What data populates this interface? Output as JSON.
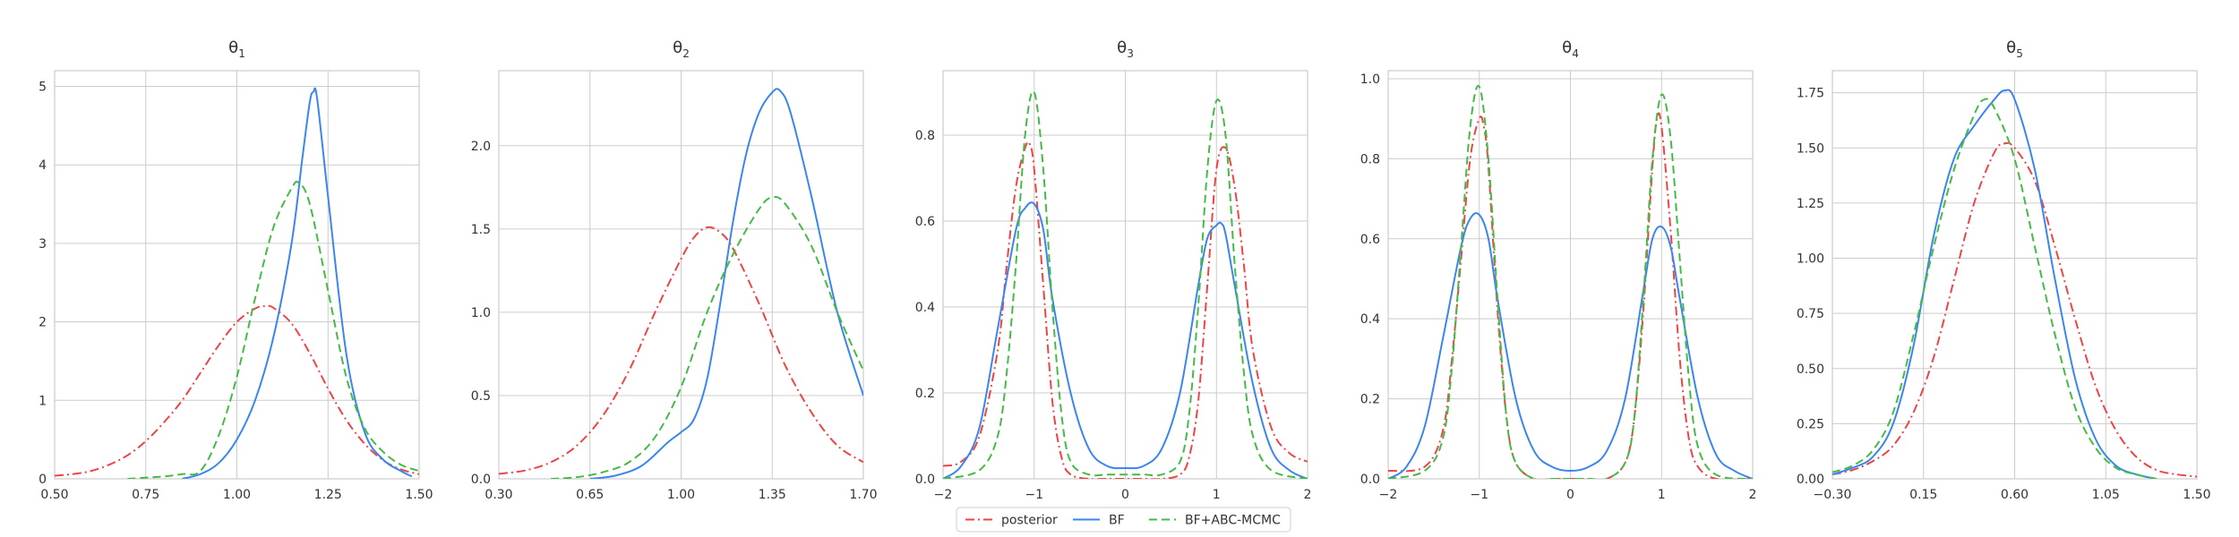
{
  "chart_data": {
    "type": "line",
    "style": {
      "grid": true,
      "legend_placement": "bottom-center",
      "background": "#ffffff",
      "grid_color": "#cccccc",
      "spine_color": "#cccccc"
    },
    "legend": [
      {
        "name": "posterior",
        "color": "#ee4444",
        "dash": "dashdot"
      },
      {
        "name": "BF",
        "color": "#3a86ee",
        "dash": "solid"
      },
      {
        "name": "BF+ABC-MCMC",
        "color": "#44bb44",
        "dash": "dashed"
      }
    ],
    "panels": [
      {
        "title_symbol": "θ",
        "title_subscript": "1",
        "xlim": [
          0.5,
          1.5
        ],
        "ylim": [
          0,
          5.2
        ],
        "xticks": [
          0.5,
          0.75,
          1.0,
          1.25,
          1.5
        ],
        "xtick_labels": [
          "0.50",
          "0.75",
          "1.00",
          "1.25",
          "1.50"
        ],
        "yticks": [
          0,
          1,
          2,
          3,
          4,
          5
        ],
        "ytick_labels": [
          "0",
          "1",
          "2",
          "3",
          "4",
          "5"
        ],
        "series": [
          {
            "name": "posterior",
            "x": [
              0.5,
              0.55,
              0.6,
              0.65,
              0.7,
              0.75,
              0.8,
              0.85,
              0.9,
              0.95,
              1.0,
              1.05,
              1.08,
              1.1,
              1.15,
              1.2,
              1.25,
              1.3,
              1.35,
              1.4,
              1.45,
              1.5
            ],
            "y": [
              0.04,
              0.06,
              0.1,
              0.18,
              0.3,
              0.48,
              0.72,
              1.0,
              1.35,
              1.7,
              2.0,
              2.17,
              2.2,
              2.18,
              1.98,
              1.6,
              1.15,
              0.75,
              0.45,
              0.24,
              0.12,
              0.06
            ]
          },
          {
            "name": "BF",
            "x": [
              0.85,
              0.9,
              0.95,
              1.0,
              1.05,
              1.1,
              1.15,
              1.18,
              1.2,
              1.21,
              1.22,
              1.25,
              1.3,
              1.35,
              1.4,
              1.45,
              1.48
            ],
            "y": [
              0.0,
              0.06,
              0.2,
              0.5,
              1.0,
              1.8,
              3.0,
              4.1,
              4.8,
              4.93,
              4.85,
              3.6,
              1.6,
              0.6,
              0.25,
              0.1,
              0.03
            ]
          },
          {
            "name": "BF+ABC-MCMC",
            "x": [
              0.7,
              0.8,
              0.85,
              0.9,
              0.95,
              1.0,
              1.05,
              1.1,
              1.15,
              1.17,
              1.2,
              1.25,
              1.3,
              1.35,
              1.4,
              1.45,
              1.5
            ],
            "y": [
              0.0,
              0.03,
              0.06,
              0.1,
              0.55,
              1.3,
              2.3,
              3.2,
              3.7,
              3.77,
              3.5,
              2.4,
              1.3,
              0.65,
              0.35,
              0.18,
              0.1
            ]
          }
        ]
      },
      {
        "title_symbol": "θ",
        "title_subscript": "2",
        "xlim": [
          0.3,
          1.7
        ],
        "ylim": [
          0,
          2.45
        ],
        "xticks": [
          0.3,
          0.65,
          1.0,
          1.35,
          1.7
        ],
        "xtick_labels": [
          "0.30",
          "0.65",
          "1.00",
          "1.35",
          "1.70"
        ],
        "yticks": [
          0,
          0.5,
          1.0,
          1.5,
          2.0
        ],
        "ytick_labels": [
          "0.0",
          "0.5",
          "1.0",
          "1.5",
          "2.0"
        ],
        "series": [
          {
            "name": "posterior",
            "x": [
              0.3,
              0.4,
              0.5,
              0.6,
              0.7,
              0.8,
              0.9,
              1.0,
              1.05,
              1.1,
              1.15,
              1.2,
              1.3,
              1.4,
              1.5,
              1.6,
              1.7
            ],
            "y": [
              0.03,
              0.05,
              0.1,
              0.2,
              0.38,
              0.65,
              1.0,
              1.32,
              1.45,
              1.51,
              1.48,
              1.38,
              1.05,
              0.68,
              0.4,
              0.2,
              0.1
            ]
          },
          {
            "name": "BF",
            "x": [
              0.65,
              0.75,
              0.85,
              0.95,
              1.0,
              1.05,
              1.1,
              1.15,
              1.2,
              1.25,
              1.3,
              1.35,
              1.38,
              1.42,
              1.5,
              1.6,
              1.7
            ],
            "y": [
              0.0,
              0.02,
              0.08,
              0.22,
              0.28,
              0.36,
              0.6,
              1.05,
              1.55,
              1.95,
              2.2,
              2.32,
              2.33,
              2.2,
              1.7,
              1.0,
              0.5
            ]
          },
          {
            "name": "BF+ABC-MCMC",
            "x": [
              0.5,
              0.6,
              0.7,
              0.8,
              0.9,
              1.0,
              1.1,
              1.2,
              1.3,
              1.35,
              1.4,
              1.5,
              1.6,
              1.7
            ],
            "y": [
              0.0,
              0.01,
              0.04,
              0.1,
              0.25,
              0.55,
              1.0,
              1.35,
              1.62,
              1.69,
              1.65,
              1.4,
              1.0,
              0.65
            ]
          }
        ]
      },
      {
        "title_symbol": "θ",
        "title_subscript": "3",
        "xlim": [
          -2,
          2
        ],
        "ylim": [
          0,
          0.95
        ],
        "xticks": [
          -2,
          -1,
          0,
          1,
          2
        ],
        "xtick_labels": [
          "−2",
          "−1",
          "0",
          "1",
          "2"
        ],
        "yticks": [
          0,
          0.2,
          0.4,
          0.6,
          0.8
        ],
        "ytick_labels": [
          "0.0",
          "0.2",
          "0.4",
          "0.6",
          "0.8"
        ],
        "series": [
          {
            "name": "posterior",
            "x": [
              -2.0,
              -1.8,
              -1.6,
              -1.4,
              -1.3,
              -1.2,
              -1.1,
              -1.05,
              -1.0,
              -0.9,
              -0.8,
              -0.7,
              -0.6,
              -0.4,
              -0.2,
              0.0,
              0.2,
              0.4,
              0.6,
              0.7,
              0.8,
              0.9,
              1.0,
              1.1,
              1.2,
              1.3,
              1.4,
              1.6,
              1.8,
              2.0
            ],
            "y": [
              0.03,
              0.04,
              0.1,
              0.3,
              0.5,
              0.68,
              0.77,
              0.78,
              0.72,
              0.45,
              0.18,
              0.05,
              0.01,
              0.0,
              0.0,
              0.0,
              0.0,
              0.0,
              0.01,
              0.05,
              0.18,
              0.45,
              0.72,
              0.77,
              0.68,
              0.5,
              0.3,
              0.12,
              0.06,
              0.04
            ]
          },
          {
            "name": "BF",
            "x": [
              -2.0,
              -1.8,
              -1.6,
              -1.4,
              -1.2,
              -1.1,
              -1.0,
              -0.9,
              -0.8,
              -0.6,
              -0.4,
              -0.2,
              0.0,
              0.2,
              0.4,
              0.6,
              0.8,
              0.9,
              1.0,
              1.05,
              1.1,
              1.2,
              1.4,
              1.6,
              1.8,
              2.0
            ],
            "y": [
              0.0,
              0.03,
              0.12,
              0.35,
              0.58,
              0.63,
              0.64,
              0.58,
              0.42,
              0.2,
              0.07,
              0.03,
              0.025,
              0.03,
              0.07,
              0.2,
              0.45,
              0.56,
              0.59,
              0.595,
              0.57,
              0.45,
              0.22,
              0.07,
              0.02,
              0.0
            ]
          },
          {
            "name": "BF+ABC-MCMC",
            "x": [
              -2.0,
              -1.6,
              -1.4,
              -1.3,
              -1.2,
              -1.1,
              -1.0,
              -0.9,
              -0.8,
              -0.7,
              -0.6,
              -0.4,
              -0.2,
              0.0,
              0.2,
              0.4,
              0.6,
              0.7,
              0.8,
              0.9,
              1.0,
              1.1,
              1.2,
              1.3,
              1.4,
              1.6,
              2.0
            ],
            "y": [
              0.0,
              0.02,
              0.1,
              0.25,
              0.5,
              0.8,
              0.9,
              0.72,
              0.4,
              0.15,
              0.04,
              0.01,
              0.01,
              0.01,
              0.01,
              0.01,
              0.04,
              0.15,
              0.4,
              0.72,
              0.88,
              0.8,
              0.5,
              0.25,
              0.1,
              0.02,
              0.0
            ]
          }
        ]
      },
      {
        "title_symbol": "θ",
        "title_subscript": "4",
        "xlim": [
          -2,
          2
        ],
        "ylim": [
          0,
          1.02
        ],
        "xticks": [
          -2,
          -1,
          0,
          1,
          2
        ],
        "xtick_labels": [
          "−2",
          "−1",
          "0",
          "1",
          "2"
        ],
        "yticks": [
          0,
          0.2,
          0.4,
          0.6,
          0.8,
          1.0
        ],
        "ytick_labels": [
          "0.0",
          "0.2",
          "0.4",
          "0.6",
          "0.8",
          "1.0"
        ],
        "series": [
          {
            "name": "posterior",
            "x": [
              -2.0,
              -1.6,
              -1.4,
              -1.3,
              -1.2,
              -1.1,
              -1.0,
              -0.95,
              -0.9,
              -0.8,
              -0.7,
              -0.6,
              -0.4,
              -0.2,
              0.0,
              0.2,
              0.4,
              0.6,
              0.7,
              0.8,
              0.9,
              0.95,
              1.0,
              1.1,
              1.2,
              1.3,
              1.4,
              1.6,
              2.0
            ],
            "y": [
              0.02,
              0.03,
              0.12,
              0.3,
              0.55,
              0.8,
              0.9,
              0.88,
              0.78,
              0.42,
              0.15,
              0.04,
              0.0,
              0.0,
              0.0,
              0.0,
              0.0,
              0.04,
              0.15,
              0.42,
              0.78,
              0.9,
              0.88,
              0.62,
              0.3,
              0.1,
              0.03,
              0.0,
              0.0
            ]
          },
          {
            "name": "BF",
            "x": [
              -2.0,
              -1.8,
              -1.6,
              -1.4,
              -1.2,
              -1.1,
              -1.0,
              -0.9,
              -0.8,
              -0.6,
              -0.4,
              -0.2,
              0.0,
              0.2,
              0.4,
              0.6,
              0.8,
              0.9,
              1.0,
              1.1,
              1.2,
              1.4,
              1.6,
              1.8,
              2.0
            ],
            "y": [
              0.0,
              0.03,
              0.13,
              0.35,
              0.58,
              0.65,
              0.66,
              0.6,
              0.45,
              0.2,
              0.07,
              0.03,
              0.02,
              0.03,
              0.07,
              0.2,
              0.47,
              0.6,
              0.63,
              0.58,
              0.45,
              0.2,
              0.06,
              0.02,
              0.0
            ]
          },
          {
            "name": "BF+ABC-MCMC",
            "x": [
              -2.0,
              -1.6,
              -1.4,
              -1.3,
              -1.2,
              -1.1,
              -1.0,
              -0.9,
              -0.8,
              -0.7,
              -0.6,
              -0.4,
              -0.2,
              0.0,
              0.2,
              0.4,
              0.6,
              0.7,
              0.8,
              0.9,
              1.0,
              1.1,
              1.2,
              1.3,
              1.4,
              1.6,
              2.0
            ],
            "y": [
              0.0,
              0.02,
              0.1,
              0.28,
              0.58,
              0.88,
              0.98,
              0.8,
              0.45,
              0.15,
              0.04,
              0.0,
              0.0,
              0.0,
              0.0,
              0.0,
              0.04,
              0.15,
              0.45,
              0.8,
              0.96,
              0.85,
              0.55,
              0.25,
              0.08,
              0.01,
              0.0
            ]
          }
        ]
      },
      {
        "title_symbol": "θ",
        "title_subscript": "5",
        "xlim": [
          -0.3,
          1.5
        ],
        "ylim": [
          0,
          1.85
        ],
        "xticks": [
          -0.3,
          0.15,
          0.6,
          1.05,
          1.5
        ],
        "xtick_labels": [
          "−0.30",
          "0.15",
          "0.60",
          "1.05",
          "1.50"
        ],
        "yticks": [
          0,
          0.25,
          0.5,
          0.75,
          1.0,
          1.25,
          1.5,
          1.75
        ],
        "ytick_labels": [
          "0.00",
          "0.25",
          "0.50",
          "0.75",
          "1.00",
          "1.25",
          "1.50",
          "1.75"
        ],
        "series": [
          {
            "name": "posterior",
            "x": [
              -0.3,
              -0.2,
              -0.1,
              0.0,
              0.1,
              0.2,
              0.3,
              0.4,
              0.5,
              0.55,
              0.6,
              0.7,
              0.8,
              0.9,
              1.0,
              1.1,
              1.2,
              1.3,
              1.4,
              1.5
            ],
            "y": [
              0.02,
              0.04,
              0.08,
              0.15,
              0.3,
              0.55,
              0.9,
              1.25,
              1.48,
              1.52,
              1.5,
              1.35,
              1.05,
              0.72,
              0.42,
              0.22,
              0.1,
              0.04,
              0.02,
              0.01
            ]
          },
          {
            "name": "BF",
            "x": [
              -0.3,
              -0.2,
              -0.1,
              0.0,
              0.1,
              0.2,
              0.3,
              0.4,
              0.5,
              0.55,
              0.6,
              0.7,
              0.8,
              0.9,
              1.0,
              1.1,
              1.2,
              1.3
            ],
            "y": [
              0.02,
              0.05,
              0.1,
              0.25,
              0.6,
              1.1,
              1.45,
              1.6,
              1.72,
              1.76,
              1.72,
              1.4,
              0.9,
              0.45,
              0.18,
              0.06,
              0.02,
              0.0
            ]
          },
          {
            "name": "BF+ABC-MCMC",
            "x": [
              -0.3,
              -0.2,
              -0.1,
              0.0,
              0.1,
              0.2,
              0.3,
              0.4,
              0.45,
              0.5,
              0.6,
              0.7,
              0.8,
              0.9,
              1.0,
              1.1,
              1.2,
              1.3
            ],
            "y": [
              0.03,
              0.06,
              0.13,
              0.3,
              0.65,
              1.05,
              1.4,
              1.65,
              1.72,
              1.68,
              1.45,
              1.05,
              0.65,
              0.32,
              0.14,
              0.05,
              0.02,
              0.0
            ]
          }
        ]
      }
    ]
  }
}
